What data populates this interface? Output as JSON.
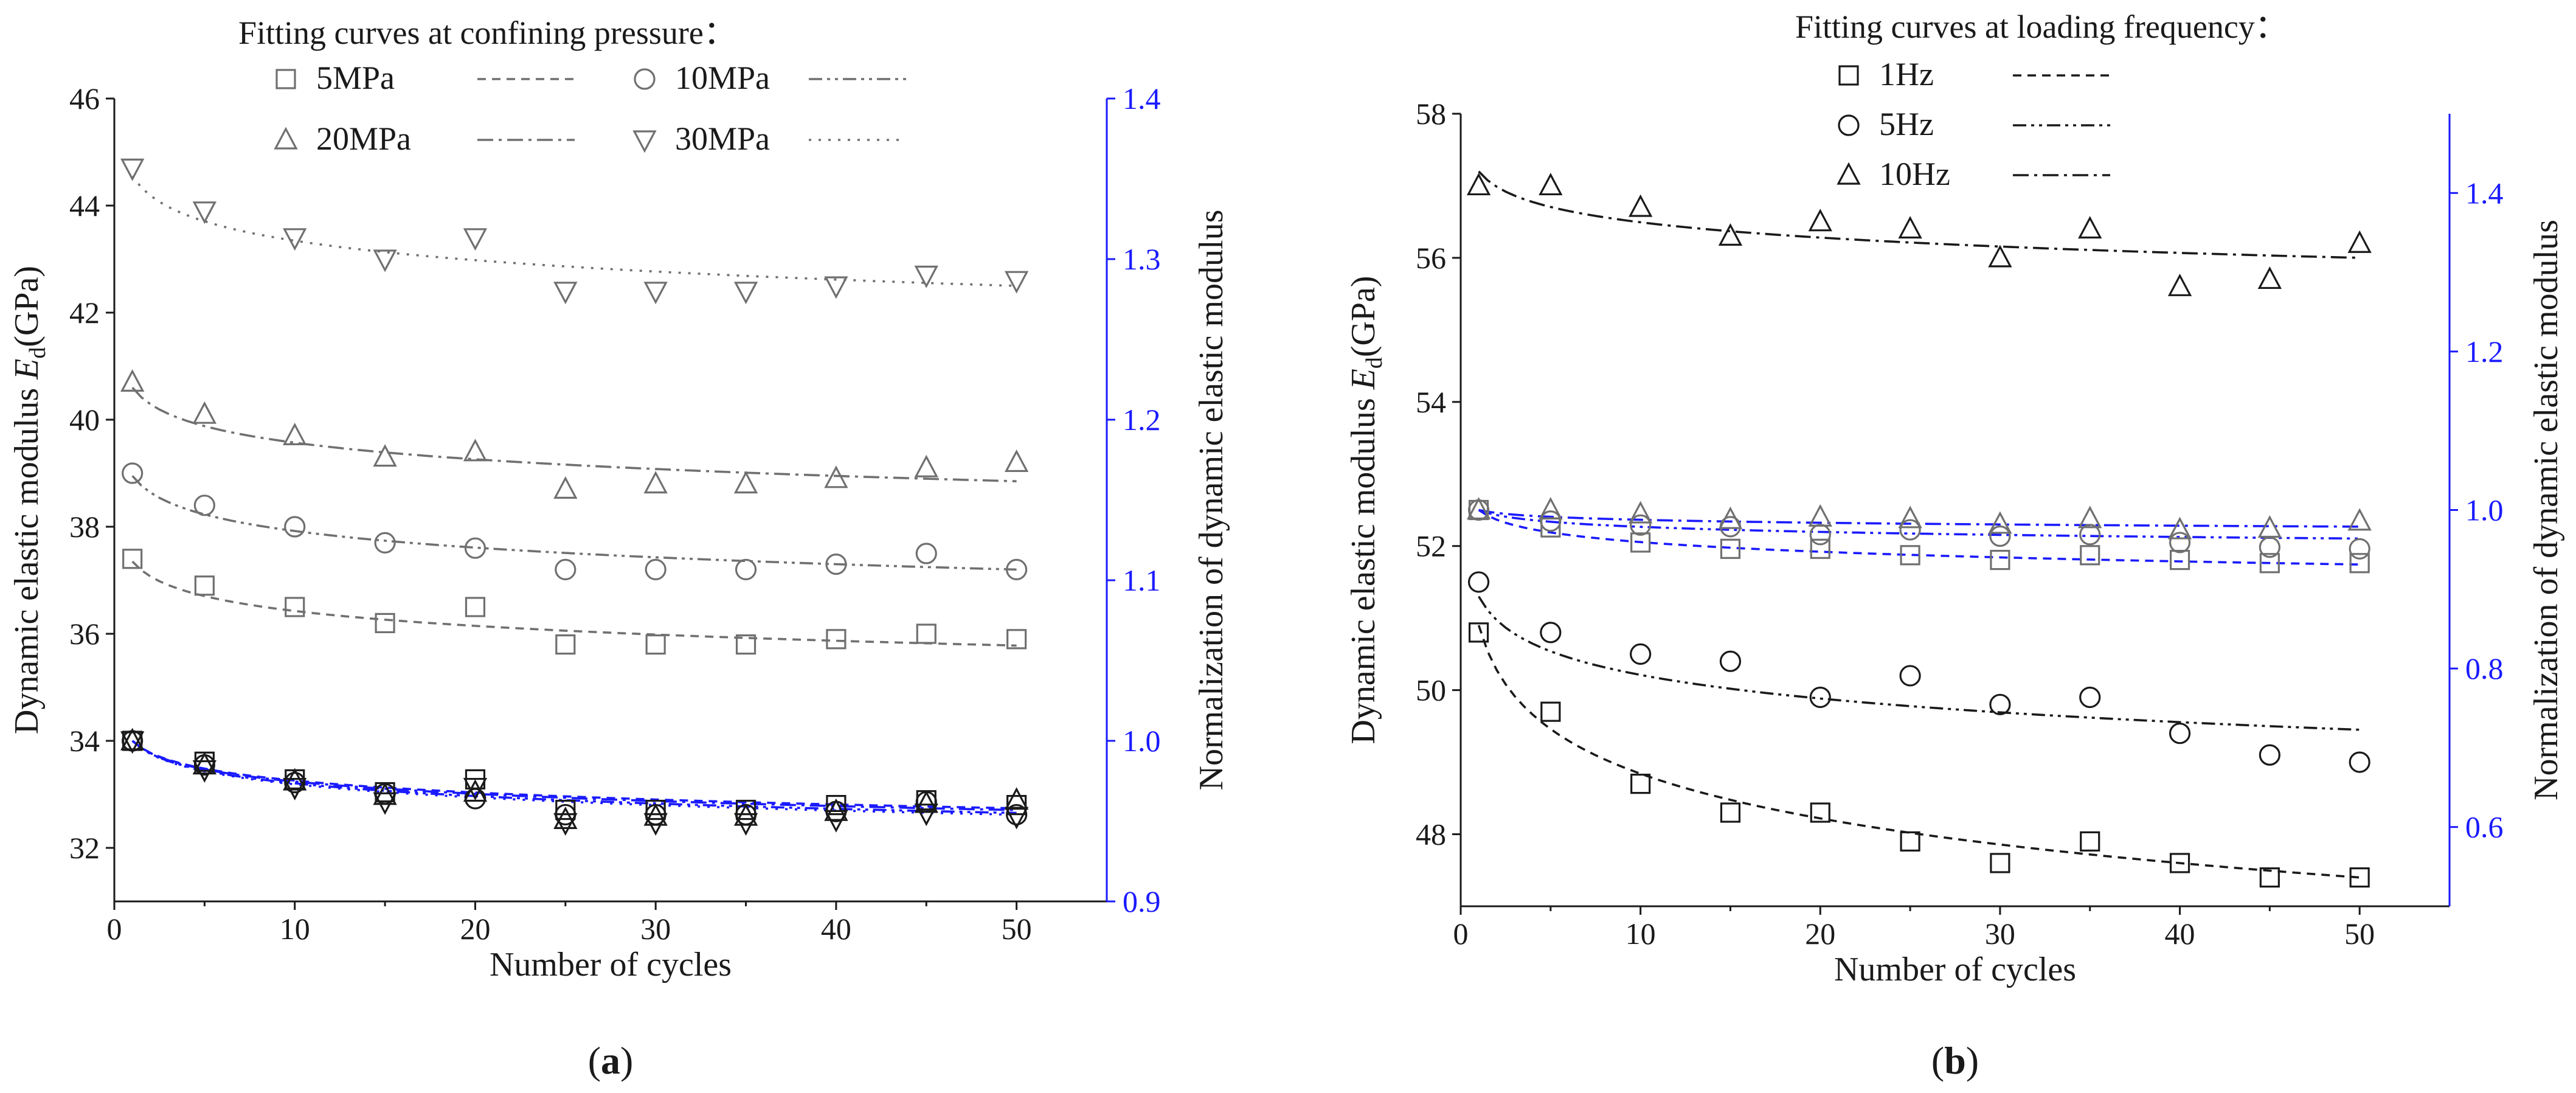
{
  "colors": {
    "black": "#1a1a1a",
    "gray": "#707070",
    "blue": "#1a1aff"
  },
  "chart_data": [
    {
      "panel_label": "a",
      "type": "scatter",
      "title": "",
      "xlabel": "Number of cycles",
      "ylabel": "Dynamic elastic modulus E_d(GPa)",
      "ylabel_parts": [
        "Dynamic elastic modulus ",
        "E",
        "d",
        "(GPa)"
      ],
      "y2label": "Normalization of dynamic elastic modulus",
      "xlim": [
        0,
        55
      ],
      "ylim": [
        31,
        46
      ],
      "y2lim": [
        0.9,
        1.4
      ],
      "xticks": [
        0,
        10,
        20,
        30,
        40,
        50
      ],
      "yticks": [
        32,
        34,
        36,
        38,
        40,
        42,
        44,
        46
      ],
      "y2ticks": [
        0.9,
        1.0,
        1.1,
        1.2,
        1.3,
        1.4
      ],
      "y2tick_labels": [
        "0.9",
        "1.0",
        "1.1",
        "1.2",
        "1.3",
        "1.4"
      ],
      "legend_title": "Fitting curves at confining pressure：",
      "x": [
        1,
        5,
        10,
        15,
        20,
        25,
        30,
        35,
        40,
        45,
        50
      ],
      "series": [
        {
          "name": "5MPa",
          "marker": "square",
          "linestyle": "dash",
          "values": [
            37.4,
            36.9,
            36.5,
            36.2,
            36.5,
            35.8,
            35.8,
            35.8,
            35.9,
            36.0,
            35.9
          ],
          "fit_start": 37.35,
          "fit_end": 35.78,
          "normalized": [
            1.0,
            0.987,
            0.976,
            0.968,
            0.976,
            0.957,
            0.957,
            0.957,
            0.96,
            0.963,
            0.96
          ]
        },
        {
          "name": "10MPa",
          "marker": "circle",
          "linestyle": "dashdotdot",
          "values": [
            39.0,
            38.4,
            38.0,
            37.7,
            37.6,
            37.2,
            37.2,
            37.2,
            37.3,
            37.5,
            37.2
          ],
          "fit_start": 38.95,
          "fit_end": 37.2,
          "normalized": [
            1.0,
            0.985,
            0.974,
            0.967,
            0.964,
            0.954,
            0.954,
            0.954,
            0.956,
            0.962,
            0.954
          ]
        },
        {
          "name": "20MPa",
          "marker": "triangle-up",
          "linestyle": "dashdot",
          "values": [
            40.7,
            40.1,
            39.7,
            39.3,
            39.4,
            38.7,
            38.8,
            38.8,
            38.9,
            39.1,
            39.2
          ],
          "fit_start": 40.6,
          "fit_end": 38.85,
          "normalized": [
            1.0,
            0.985,
            0.975,
            0.966,
            0.968,
            0.951,
            0.953,
            0.953,
            0.956,
            0.961,
            0.963
          ]
        },
        {
          "name": "30MPa",
          "marker": "triangle-down",
          "linestyle": "dot",
          "values": [
            44.7,
            43.9,
            43.4,
            43.0,
            43.4,
            42.4,
            42.4,
            42.4,
            42.5,
            42.7,
            42.6
          ],
          "fit_start": 44.55,
          "fit_end": 42.5,
          "normalized": [
            1.0,
            0.982,
            0.971,
            0.962,
            0.971,
            0.949,
            0.949,
            0.949,
            0.951,
            0.955,
            0.953
          ]
        }
      ]
    },
    {
      "panel_label": "b",
      "type": "scatter",
      "title": "",
      "xlabel": "Number of cycles",
      "ylabel": "Dynamic elastic modulus E_d(GPa)",
      "ylabel_parts": [
        "Dynamic elastic modulus ",
        "E",
        "d",
        "(GPa)"
      ],
      "y2label": "Normalization of dynamic elastic modulus",
      "xlim": [
        0,
        55
      ],
      "ylim": [
        47,
        58
      ],
      "y2lim": [
        0.5,
        1.5
      ],
      "xticks": [
        0,
        10,
        20,
        30,
        40,
        50
      ],
      "yticks": [
        48,
        50,
        52,
        54,
        56,
        58
      ],
      "y2ticks": [
        0.6,
        0.8,
        1.0,
        1.2,
        1.4
      ],
      "y2tick_labels": [
        "0.6",
        "0.8",
        "1.0",
        "1.2",
        "1.4"
      ],
      "legend_title": "Fitting curves at loading frequency：",
      "x": [
        1,
        5,
        10,
        15,
        20,
        25,
        30,
        35,
        40,
        45,
        50
      ],
      "series": [
        {
          "name": "1Hz",
          "marker": "square",
          "linestyle": "dash",
          "values": [
            50.8,
            49.7,
            48.7,
            48.3,
            48.3,
            47.9,
            47.6,
            47.9,
            47.6,
            47.4,
            47.4
          ],
          "fit_start": 50.9,
          "fit_end": 47.4,
          "normalized": [
            1.0,
            0.978,
            0.959,
            0.951,
            0.951,
            0.943,
            0.937,
            0.943,
            0.937,
            0.933,
            0.933
          ]
        },
        {
          "name": "5Hz",
          "marker": "circle",
          "linestyle": "dashdotdot",
          "values": [
            51.5,
            50.8,
            50.5,
            50.4,
            49.9,
            50.2,
            49.8,
            49.9,
            49.4,
            49.1,
            49.0
          ],
          "fit_start": 51.3,
          "fit_end": 49.45,
          "normalized": [
            1.0,
            0.986,
            0.981,
            0.979,
            0.969,
            0.975,
            0.967,
            0.969,
            0.959,
            0.953,
            0.951
          ]
        },
        {
          "name": "10Hz",
          "marker": "triangle-up",
          "linestyle": "dashdot",
          "values": [
            57.0,
            57.0,
            56.7,
            56.3,
            56.5,
            56.4,
            56.0,
            56.4,
            55.6,
            55.7,
            56.2
          ],
          "fit_start": 57.2,
          "fit_end": 56.0,
          "normalized": [
            1.0,
            1.0,
            0.995,
            0.988,
            0.991,
            0.989,
            0.982,
            0.989,
            0.975,
            0.977,
            0.986
          ]
        }
      ]
    }
  ]
}
